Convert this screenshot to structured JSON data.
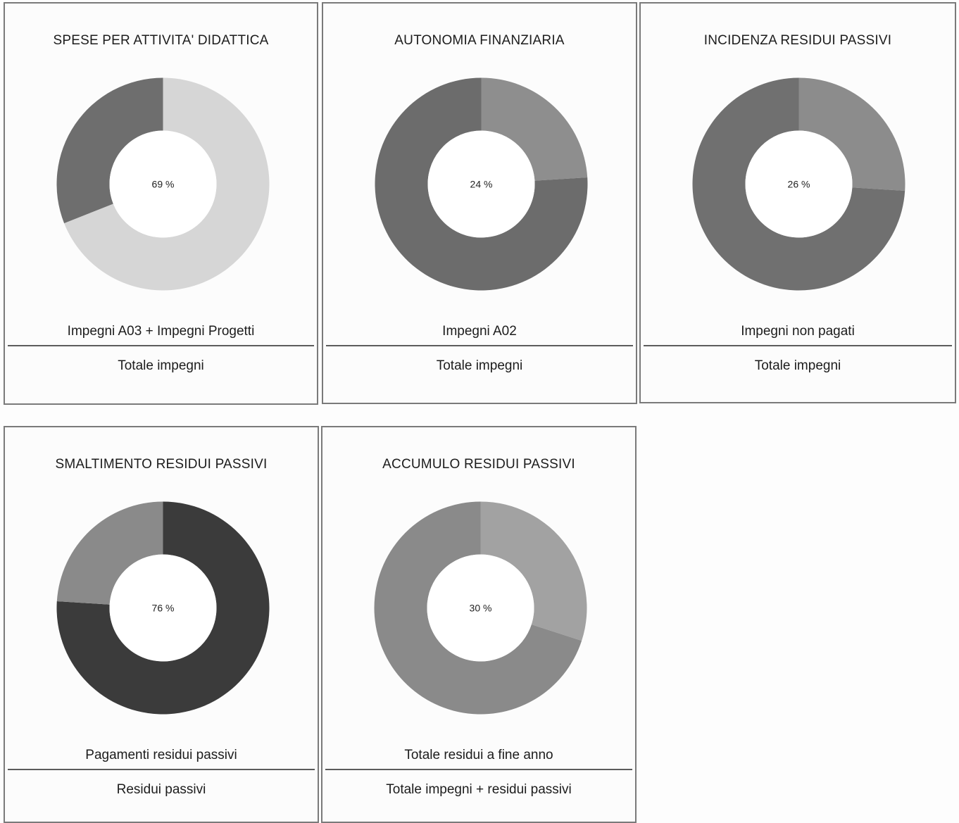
{
  "chart_data": [
    {
      "type": "pie",
      "title": "SPESE PER ATTIVITA' DIDATTICA",
      "center_label": "69 %",
      "values": [
        69,
        31
      ],
      "colors": [
        "#d6d6d6",
        "#6e6e6e"
      ],
      "numerator": "Impegni A03 + Impegni Progetti",
      "denominator": "Totale impegni"
    },
    {
      "type": "pie",
      "title": "AUTONOMIA FINANZIARIA",
      "center_label": "24 %",
      "values": [
        24,
        76
      ],
      "colors": [
        "#8e8e8e",
        "#6c6c6c"
      ],
      "numerator": "Impegni A02",
      "denominator": "Totale impegni"
    },
    {
      "type": "pie",
      "title": "INCIDENZA RESIDUI PASSIVI",
      "center_label": "26 %",
      "values": [
        26,
        74
      ],
      "colors": [
        "#8c8c8c",
        "#707070"
      ],
      "numerator": "Impegni non pagati",
      "denominator": "Totale impegni"
    },
    {
      "type": "pie",
      "title": "SMALTIMENTO RESIDUI PASSIVI",
      "center_label": "76 %",
      "values": [
        76,
        24
      ],
      "colors": [
        "#3b3b3b",
        "#8a8a8a"
      ],
      "numerator": "Pagamenti residui passivi",
      "denominator": "Residui passivi"
    },
    {
      "type": "pie",
      "title": "ACCUMULO RESIDUI PASSIVI",
      "center_label": "30 %",
      "values": [
        30,
        70
      ],
      "colors": [
        "#a2a2a2",
        "#8a8a8a"
      ],
      "numerator": "Totale residui a fine anno",
      "denominator": "Totale impegni + residui passivi"
    }
  ]
}
